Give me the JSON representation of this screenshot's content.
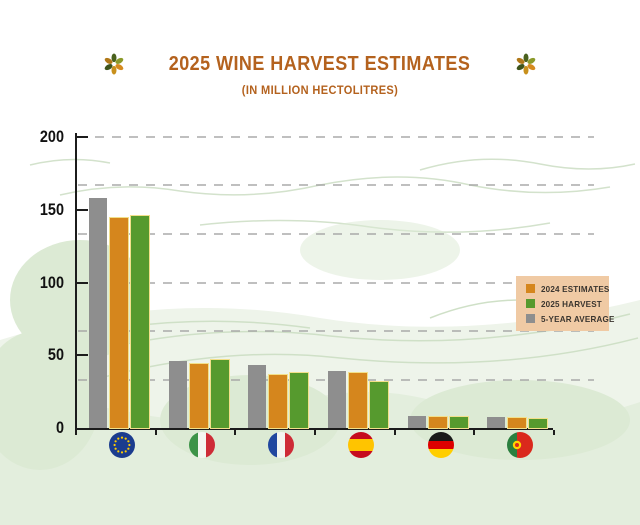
{
  "chart_data": {
    "type": "bar",
    "title": "2025 WINE HARVEST  ESTIMATES",
    "subtitle": "(IN MILLION HECTOLITRES)",
    "title_color": "#B4621E",
    "categories": [
      "European Union",
      "Italy",
      "France",
      "Spain",
      "Germany",
      "Portugal"
    ],
    "flags": [
      "eu",
      "it",
      "fr",
      "es",
      "de",
      "pt"
    ],
    "series": [
      {
        "name": "2024 ESTIMATES",
        "color": "#D5861D",
        "outline": "#F2E08A",
        "values": [
          144,
          44,
          36.5,
          37.5,
          7.8,
          6.9
        ]
      },
      {
        "name": "2025 HARVEST",
        "color": "#569A2E",
        "outline": "#F2E08A",
        "values": [
          146,
          47,
          37.5,
          31.5,
          7.4,
          6.4
        ]
      },
      {
        "name": "5-YEAR AVERAGE",
        "color": "#8E8E8E",
        "outline": null,
        "values": [
          158,
          46,
          43,
          39.5,
          8.2,
          7.3
        ]
      }
    ],
    "draw_order": [
      2,
      0,
      1
    ],
    "ylim": [
      0,
      200
    ],
    "yticks": [
      0,
      50,
      100,
      150,
      200
    ],
    "gridlines": [
      33.3,
      66.7,
      100,
      133.3,
      166.7,
      200
    ],
    "grid": true,
    "legend_position": "right",
    "legend_bg": "#F0CAA4",
    "xlabel": "",
    "ylabel": ""
  }
}
